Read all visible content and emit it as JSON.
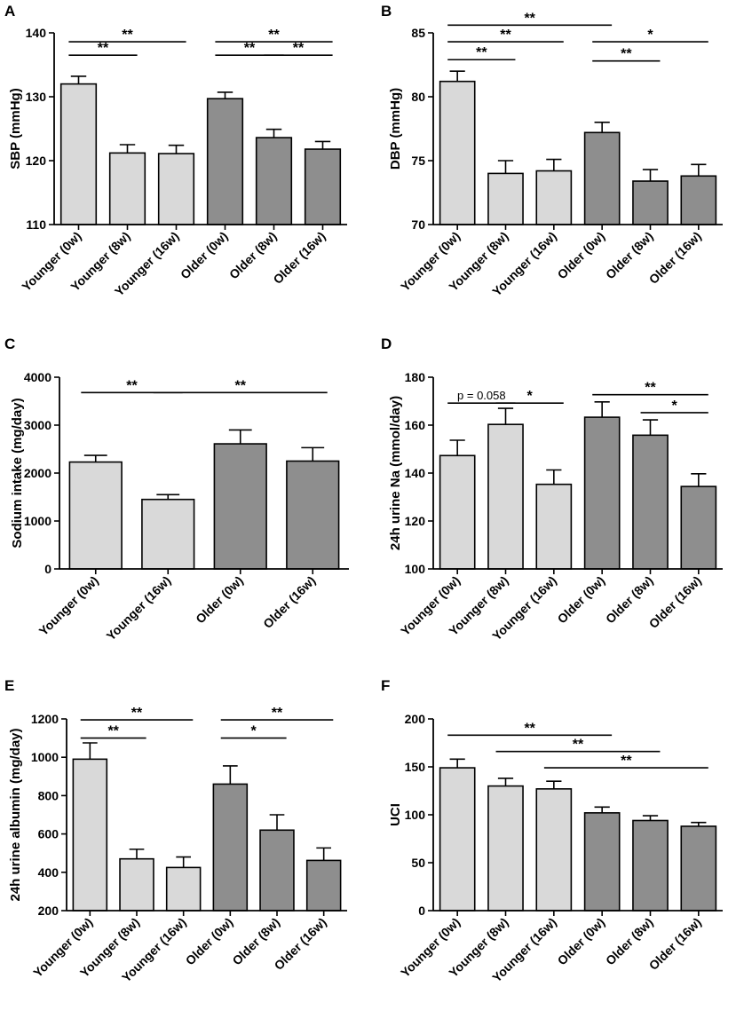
{
  "colors": {
    "younger": "#d9d9d9",
    "older": "#8e8e8e",
    "stroke": "#000000"
  },
  "chart_data": [
    {
      "panel": "A",
      "type": "bar",
      "ylabel": "SBP (mmHg)",
      "ylim": [
        110,
        140
      ],
      "yticks": [
        110,
        120,
        130,
        140
      ],
      "categories": [
        "Younger (0w)",
        "Younger (8w)",
        "Younger (16w)",
        "Older (0w)",
        "Older (8w)",
        "Older (16w)"
      ],
      "groups": [
        "younger",
        "younger",
        "younger",
        "older",
        "older",
        "older"
      ],
      "values": [
        132.0,
        121.2,
        121.1,
        129.7,
        123.6,
        121.8
      ],
      "errors": [
        1.2,
        1.3,
        1.3,
        1.0,
        1.3,
        1.2
      ],
      "significance": [
        {
          "from": 0,
          "to": 1,
          "label": "**",
          "y": 136.5
        },
        {
          "from": 0,
          "to": 2,
          "label": "**",
          "y": 138.6
        },
        {
          "from": 3,
          "to": 4,
          "label": "**",
          "y": 136.5
        },
        {
          "from": 4,
          "to": 5,
          "label": "**",
          "y": 136.5
        },
        {
          "from": 3,
          "to": 5,
          "label": "**",
          "y": 138.6
        }
      ]
    },
    {
      "panel": "B",
      "type": "bar",
      "ylabel": "DBP (mmHg)",
      "ylim": [
        70,
        85
      ],
      "yticks": [
        70,
        75,
        80,
        85
      ],
      "categories": [
        "Younger (0w)",
        "Younger (8w)",
        "Younger (16w)",
        "Older (0w)",
        "Older (8w)",
        "Older (16w)"
      ],
      "groups": [
        "younger",
        "younger",
        "younger",
        "older",
        "older",
        "older"
      ],
      "values": [
        81.2,
        74.0,
        74.2,
        77.2,
        73.4,
        73.8
      ],
      "errors": [
        0.8,
        1.0,
        0.9,
        0.8,
        0.9,
        0.9
      ],
      "significance": [
        {
          "from": 0,
          "to": 3,
          "label": "**",
          "y": 85.6
        },
        {
          "from": 0,
          "to": 2,
          "label": "**",
          "y": 84.3
        },
        {
          "from": 0,
          "to": 1,
          "label": "**",
          "y": 82.9
        },
        {
          "from": 3,
          "to": 5,
          "label": "*",
          "y": 84.3
        },
        {
          "from": 3,
          "to": 4,
          "label": "**",
          "y": 82.8
        }
      ]
    },
    {
      "panel": "C",
      "type": "bar",
      "ylabel": "Sodium intake (mg/day)",
      "ylim": [
        0,
        4000
      ],
      "yticks": [
        0,
        1000,
        2000,
        3000,
        4000
      ],
      "categories": [
        "Younger (0w)",
        "Younger (16w)",
        "Older (0w)",
        "Older (16w)"
      ],
      "groups": [
        "younger",
        "younger",
        "older",
        "older"
      ],
      "values": [
        2230,
        1450,
        2610,
        2250
      ],
      "errors": [
        140,
        100,
        290,
        280
      ],
      "significance": [
        {
          "from": 0,
          "to": 1,
          "label": "**",
          "y": 3680
        },
        {
          "from": 1,
          "to": 3,
          "label": "**",
          "y": 3680
        }
      ]
    },
    {
      "panel": "D",
      "type": "bar",
      "ylabel": "24h urine Na (mmol/day)",
      "ylim": [
        100,
        180
      ],
      "yticks": [
        100,
        120,
        140,
        160,
        180
      ],
      "categories": [
        "Younger (0w)",
        "Younger (8w)",
        "Younger (16w)",
        "Older (0w)",
        "Older (8w)",
        "Older (16w)"
      ],
      "groups": [
        "younger",
        "younger",
        "younger",
        "older",
        "older",
        "older"
      ],
      "values": [
        147.3,
        160.3,
        135.3,
        163.3,
        155.8,
        134.4
      ],
      "errors": [
        6.4,
        6.7,
        6.0,
        6.4,
        6.4,
        5.3
      ],
      "significance": [
        {
          "from": 0,
          "to": 1,
          "label": "p = 0.058",
          "y": 169.2
        },
        {
          "from": 1,
          "to": 2,
          "label": "*",
          "y": 169.2
        },
        {
          "from": 3,
          "to": 5,
          "label": "**",
          "y": 172.7
        },
        {
          "from": 4,
          "to": 5,
          "label": "*",
          "y": 165.2
        }
      ]
    },
    {
      "panel": "E",
      "type": "bar",
      "ylabel": "24h urine albumin (mg/day)",
      "ylim": [
        200,
        1200
      ],
      "yticks": [
        200,
        400,
        600,
        800,
        1000,
        1200
      ],
      "categories": [
        "Younger (0w)",
        "Younger (8w)",
        "Younger (16w)",
        "Older (0w)",
        "Older (8w)",
        "Older (16w)"
      ],
      "groups": [
        "younger",
        "younger",
        "younger",
        "older",
        "older",
        "older"
      ],
      "values": [
        990,
        470,
        425,
        860,
        620,
        462
      ],
      "errors": [
        85,
        50,
        55,
        95,
        80,
        65
      ],
      "significance": [
        {
          "from": 0,
          "to": 1,
          "label": "**",
          "y": 1100
        },
        {
          "from": 0,
          "to": 2,
          "label": "**",
          "y": 1195
        },
        {
          "from": 3,
          "to": 4,
          "label": "*",
          "y": 1100
        },
        {
          "from": 3,
          "to": 5,
          "label": "**",
          "y": 1195
        }
      ]
    },
    {
      "panel": "F",
      "type": "bar",
      "ylabel": "UCI",
      "ylim": [
        0,
        200
      ],
      "yticks": [
        0,
        50,
        100,
        150,
        200
      ],
      "categories": [
        "Younger (0w)",
        "Younger (8w)",
        "Younger (16w)",
        "Older (0w)",
        "Older (8w)",
        "Older (16w)"
      ],
      "groups": [
        "younger",
        "younger",
        "younger",
        "older",
        "older",
        "older"
      ],
      "values": [
        149,
        130,
        127,
        102,
        94,
        88
      ],
      "errors": [
        9,
        8,
        8,
        6,
        5,
        4
      ],
      "significance": [
        {
          "from": 0,
          "to": 3,
          "label": "**",
          "y": 183
        },
        {
          "from": 1,
          "to": 4,
          "label": "**",
          "y": 166
        },
        {
          "from": 2,
          "to": 5,
          "label": "**",
          "y": 149
        }
      ]
    }
  ]
}
